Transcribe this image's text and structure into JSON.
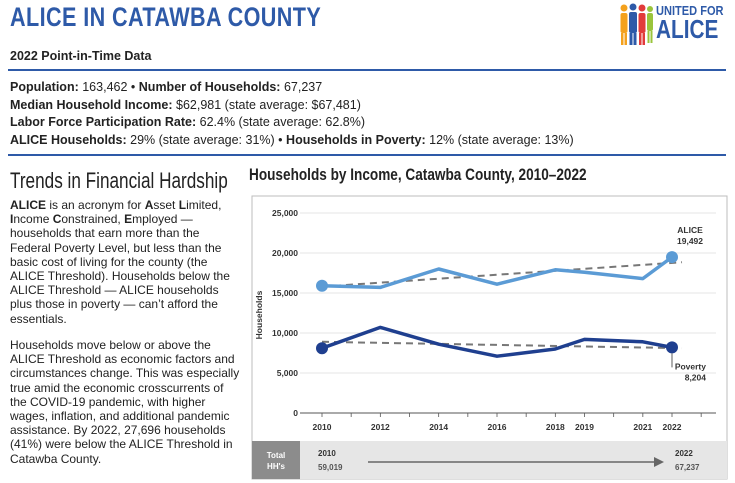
{
  "header": {
    "title": "ALICE IN CATAWBA COUNTY",
    "subtitle": "2022 Point-in-Time Data",
    "logo_line1": "UNITED FOR",
    "logo_line2": "ALICE"
  },
  "stats": {
    "population_label": "Population:",
    "population_value": "163,462",
    "households_label": "Number of Households:",
    "households_value": "67,237",
    "income_label": "Median Household Income:",
    "income_value": "$62,981 (state average: $67,481)",
    "lfpr_label": "Labor Force Participation Rate:",
    "lfpr_value": "62.4% (state average: 62.8%)",
    "alice_label": "ALICE Households:",
    "alice_value": "29% (state average: 31%)",
    "poverty_label": "Households in Poverty:",
    "poverty_value": "12% (state average: 13%)",
    "bullet": "•"
  },
  "left": {
    "title": "Trends in Financial Hardship",
    "p1_a": "ALICE",
    "p1_b": " is an acronym for ",
    "p1_c": "A",
    "p1_d": "sset ",
    "p1_e": "L",
    "p1_f": "imited, ",
    "p1_g": "I",
    "p1_h": "ncome ",
    "p1_i": "C",
    "p1_j": "onstrained, ",
    "p1_k": "E",
    "p1_l": "mployed — households that earn more than the Federal Poverty Level, but less than the basic cost of living for the county (the ALICE Threshold). Households below the ALICE Threshold — ALICE households plus those in poverty — can’t afford the essentials.",
    "p2": "Households move below or above the ALICE Threshold as economic factors and circumstances change. This was especially true amid the economic crosscurrents of the COVID-19 pandemic, with higher wages, inflation, and additional pandemic assistance. By 2022, 27,696 households (41%) were below the ALICE Threshold in Catawba County."
  },
  "chart_data": {
    "type": "line",
    "title": "Households by Income, Catawba County, 2010–2022",
    "ylabel": "Households",
    "xlabel": "",
    "ylim": [
      0,
      25000
    ],
    "yticks": [
      0,
      5000,
      10000,
      15000,
      20000,
      25000
    ],
    "ytick_labels": [
      "0",
      "5,000",
      "10,000",
      "15,000",
      "20,000",
      "25,000"
    ],
    "x_ticks": [
      2010,
      2012,
      2014,
      2016,
      2018,
      2019,
      2021,
      2022
    ],
    "series": [
      {
        "name": "ALICE",
        "color": "#5b9bd5",
        "x": [
          2010,
          2012,
          2014,
          2016,
          2018,
          2019,
          2021,
          2022
        ],
        "values": [
          15900,
          15700,
          18000,
          16100,
          17900,
          17600,
          16800,
          19492
        ],
        "end_label": "ALICE",
        "end_value_label": "19,492",
        "trend": [
          15800,
          18600
        ]
      },
      {
        "name": "Poverty",
        "color": "#1f3f8f",
        "x": [
          2010,
          2012,
          2014,
          2016,
          2018,
          2019,
          2021,
          2022
        ],
        "values": [
          8100,
          10700,
          8600,
          7100,
          8000,
          9200,
          8900,
          8204
        ],
        "end_label": "Poverty",
        "end_value_label": "8,204",
        "trend": [
          8900,
          8100
        ]
      }
    ],
    "trend_color": "#777777",
    "total_hh": {
      "label_line1": "Total",
      "label_line2": "HH's",
      "start_year": "2010",
      "start_value": "59,019",
      "end_year": "2022",
      "end_value": "67,237"
    }
  }
}
